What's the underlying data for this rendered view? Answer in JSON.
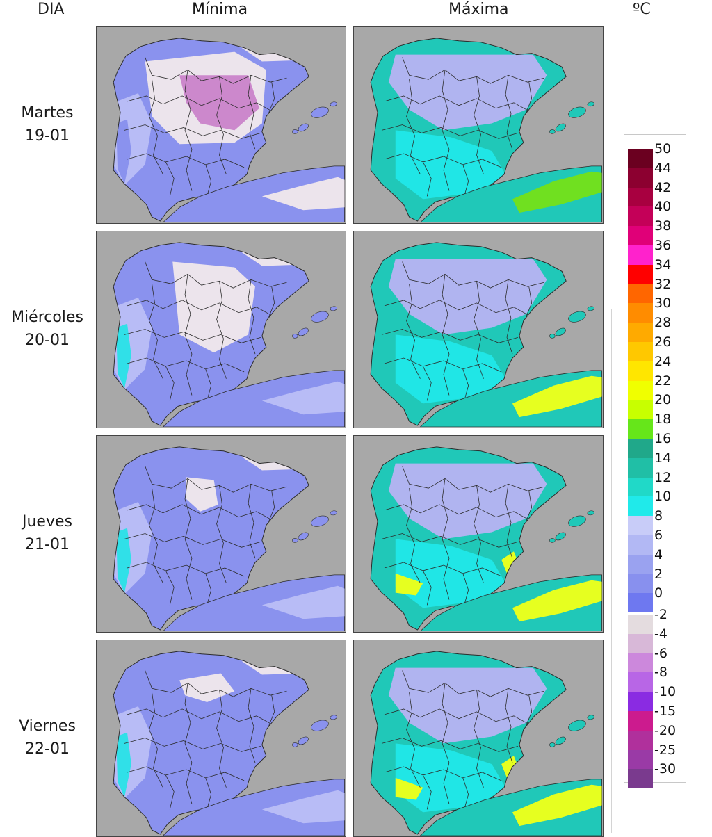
{
  "headers": {
    "day": "DIA",
    "min": "Mínima",
    "max": "Máxima",
    "unit": "ºC"
  },
  "days": [
    {
      "weekday": "Martes",
      "date": "19-01",
      "min_map": "minima-19-01",
      "max_map": "maxima-19-01"
    },
    {
      "weekday": "Miércoles",
      "date": "20-01",
      "min_map": "minima-20-01",
      "max_map": "maxima-20-01"
    },
    {
      "weekday": "Jueves",
      "date": "21-01",
      "min_map": "minima-21-01",
      "max_map": "maxima-21-01"
    },
    {
      "weekday": "Viernes",
      "date": "22-01",
      "min_map": "minima-22-01",
      "max_map": "maxima-22-01"
    }
  ],
  "legend": {
    "positive": [
      {
        "label": "50",
        "color": "#6b0020"
      },
      {
        "label": "44",
        "color": "#8c0030"
      },
      {
        "label": "42",
        "color": "#a80040"
      },
      {
        "label": "40",
        "color": "#c40058"
      },
      {
        "label": "38",
        "color": "#e00078"
      },
      {
        "label": "36",
        "color": "#ff22cc"
      },
      {
        "label": "34",
        "color": "#ff0000"
      },
      {
        "label": "32",
        "color": "#ff6600"
      },
      {
        "label": "30",
        "color": "#ff8c00"
      },
      {
        "label": "28",
        "color": "#ffaa00"
      },
      {
        "label": "26",
        "color": "#ffc800"
      },
      {
        "label": "24",
        "color": "#ffe600"
      },
      {
        "label": "22",
        "color": "#f0ff00"
      },
      {
        "label": "20",
        "color": "#c8ff00"
      },
      {
        "label": "18",
        "color": "#66e61a"
      },
      {
        "label": "16",
        "color": "#20a88a"
      },
      {
        "label": "14",
        "color": "#20bfa6"
      },
      {
        "label": "12",
        "color": "#20d9c8"
      },
      {
        "label": "10",
        "color": "#20eaea"
      },
      {
        "label": "8",
        "color": "#c8ccf8"
      },
      {
        "label": "6",
        "color": "#b2b8f4"
      },
      {
        "label": "4",
        "color": "#9aa2f0"
      },
      {
        "label": "2",
        "color": "#8890ee"
      },
      {
        "label": "0",
        "color": "#6e78f0"
      }
    ],
    "negative": [
      {
        "label": "-2",
        "color": "#e4dcdf"
      },
      {
        "label": "-4",
        "color": "#d8b8d8"
      },
      {
        "label": "-6",
        "color": "#cc88dc"
      },
      {
        "label": "-8",
        "color": "#b866e6"
      },
      {
        "label": "-10",
        "color": "#8a2be2"
      },
      {
        "label": "-15",
        "color": "#cc1b8e"
      },
      {
        "label": "-20",
        "color": "#b0309c"
      },
      {
        "label": "-25",
        "color": "#9a3aa6"
      },
      {
        "label": "-30",
        "color": "#7a3a8e"
      }
    ]
  },
  "colors": {
    "sea": "#a8a8a8",
    "border": "#2b2b2b",
    "min_base": "#8a92ee",
    "min_light": "#b8bcf6",
    "min_cold": "#ece4ec",
    "min_frost": "#cc88cc",
    "min_coast": "#30e0e8",
    "max_base": "#20c8b8",
    "max_cyan": "#20e6e6",
    "max_cool": "#b0b4f0",
    "max_warm": "#e6ff20",
    "max_green": "#70e020"
  }
}
